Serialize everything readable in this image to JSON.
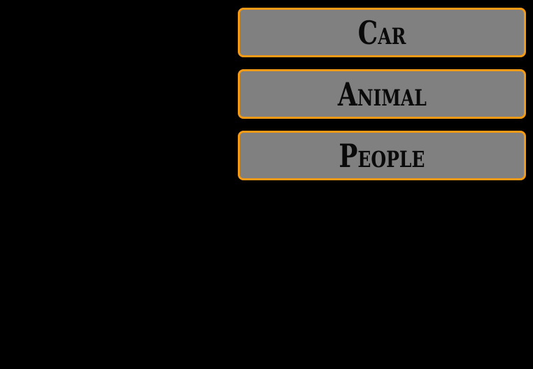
{
  "menu": {
    "items": [
      {
        "label": "Car"
      },
      {
        "label": "Animal"
      },
      {
        "label": "People"
      }
    ]
  },
  "colors": {
    "background": "#000000",
    "button_fill": "#808080",
    "button_border": "#f39a17",
    "button_text": "#0a0a0a"
  }
}
